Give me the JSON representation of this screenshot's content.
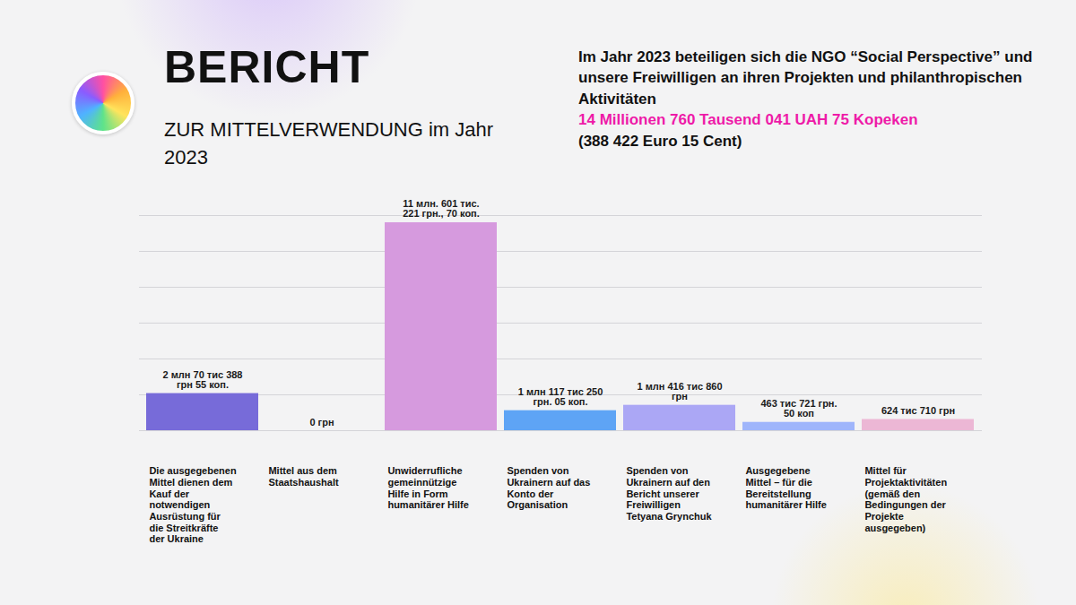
{
  "chart_data": {
    "type": "bar",
    "title": "BERICHT",
    "subtitle": "ZUR MITTELVERWENDUNG im Jahr 2023",
    "annotation": {
      "text": "Im Jahr 2023 beteiligen sich die NGO “Social Perspective” und unsere Freiwilligen an ihren Projekten und philanthropischen Aktivitäten",
      "highlight": "14 Millionen 760 Tausend 041 UAH 75 Kopeken",
      "note": "(388 422 Euro 15 Cent)"
    },
    "categories": [
      "Die ausgegebenen Mittel dienen dem Kauf der notwendigen Ausrüstung für die Streitkräfte der Ukraine",
      "Mittel aus dem Staatshaushalt",
      "Unwiderrufliche gemeinnützige Hilfe in Form humanitärer Hilfe",
      "Spenden von Ukrainern auf das Konto der Organisation",
      "Spenden von Ukrainern auf den Bericht unserer Freiwilligen Tetyana Grynchuk",
      "Ausgegebene Mittel – für die Bereitstellung humanitärer Hilfe",
      "Mittel für Projektaktivitäten (gemäß den Bedingungen der Projekte ausgegeben)"
    ],
    "values": [
      2070388.55,
      0,
      11601221.7,
      1117250.05,
      1416860,
      463721.5,
      624710
    ],
    "value_labels": [
      "2 млн 70 тис 388 грн 55 коп.",
      "0 грн",
      "11 млн. 601 тис. 221 грн., 70 коп.",
      "1 млн 117 тис 250 грн. 05 коп.",
      "1 млн 416 тис 860 грн",
      "463 тис 721 грн. 50 коп",
      "624 тис 710 грн"
    ],
    "colors": [
      "#776bd9",
      "#b3b3b3",
      "#d69ade",
      "#5ea4f5",
      "#aba7f5",
      "#9fb5fb",
      "#ecb7d5"
    ],
    "ylim": [
      0,
      12000000
    ],
    "yticks": [
      0,
      2000000,
      4000000,
      6000000,
      8000000,
      10000000,
      12000000
    ],
    "grid": true,
    "data_labels": true,
    "tick_labels": false
  }
}
